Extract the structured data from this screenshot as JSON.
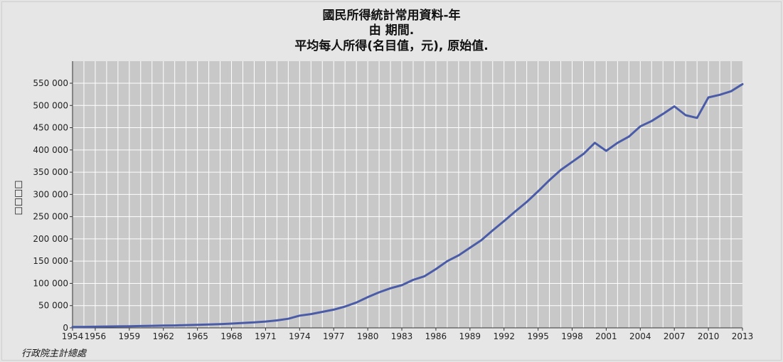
{
  "chart_data": {
    "type": "line",
    "title": "國民所得統計常用資料-年",
    "subtitle_1": "由 期間.",
    "subtitle_2": "平均每人所得(名目值，元), 原始值.",
    "ylabel": "□□□□",
    "source": "行政院主計總處",
    "xlim": [
      1954,
      2013
    ],
    "ylim": [
      0,
      550000
    ],
    "x_ticks": [
      "1954",
      "1956",
      "1959",
      "1962",
      "1965",
      "1968",
      "1971",
      "1974",
      "1977",
      "1980",
      "1983",
      "1986",
      "1989",
      "1992",
      "1995",
      "1998",
      "2001",
      "2004",
      "2007",
      "2010",
      "2013"
    ],
    "y_ticks": [
      "0",
      "50 000",
      "100 000",
      "150 000",
      "200 000",
      "250 000",
      "300 000",
      "350 000",
      "400 000",
      "450 000",
      "500 000",
      "550 000"
    ],
    "grid": true,
    "line_color": "#4a5ca7",
    "series": [
      {
        "x": [
          1954,
          1955,
          1956,
          1957,
          1958,
          1959,
          1960,
          1961,
          1962,
          1963,
          1964,
          1965,
          1966,
          1967,
          1968,
          1969,
          1970,
          1971,
          1972,
          1973,
          1974,
          1975,
          1976,
          1977,
          1978,
          1979,
          1980,
          1981,
          1982,
          1983,
          1984,
          1985,
          1986,
          1987,
          1988,
          1989,
          1990,
          1991,
          1992,
          1993,
          1994,
          1995,
          1996,
          1997,
          1998,
          1999,
          2000,
          2001,
          2002,
          2003,
          2004,
          2005,
          2006,
          2007,
          2008,
          2009,
          2010,
          2011,
          2012,
          2013
        ],
        "values": [
          2000,
          2300,
          2600,
          3000,
          3300,
          3600,
          4200,
          4700,
          5100,
          5500,
          6200,
          6800,
          7500,
          8400,
          9600,
          11000,
          12500,
          14300,
          16800,
          20500,
          27500,
          31000,
          36000,
          41000,
          48000,
          57000,
          69000,
          80000,
          89000,
          96000,
          108000,
          116000,
          132000,
          150000,
          163000,
          180000,
          197000,
          219000,
          240000,
          262000,
          283000,
          307000,
          332000,
          355000,
          373000,
          391000,
          416000,
          398000,
          416000,
          430000,
          453000,
          465000,
          481000,
          498000,
          478000,
          472000,
          518000,
          524000,
          532000,
          548000
        ]
      }
    ]
  }
}
